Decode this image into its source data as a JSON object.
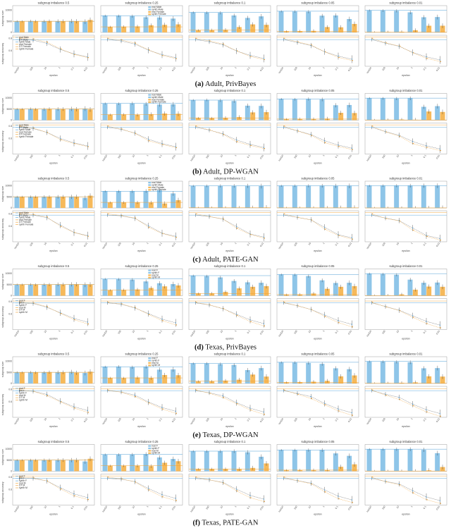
{
  "figure": {
    "subgroup_titles": [
      "subgroup imbalance 0.5",
      "subgroup imbalance 0.25",
      "subgroup imbalance 0.1",
      "subgroup imbalance 0.05",
      "subgroup imbalance 0.01"
    ],
    "x_ticks": [
      "nonDP",
      "100",
      "10",
      "1",
      "0.1",
      "0.01"
    ],
    "x_label": "epsilon",
    "colors": {
      "majority": "#8ec5e8",
      "minority": "#f6b95a",
      "majority_line": "#4f9fd6",
      "minority_line": "#f0a030"
    }
  },
  "chart_data": [
    {
      "panel": "a",
      "caption_label": "(a)",
      "caption_text": "Adult, PrivBayes",
      "top": {
        "type": "bar",
        "ylabel": "subgroup size",
        "yticks": [
          "10000",
          "5000",
          "0"
        ],
        "ylim": [
          0,
          12000
        ],
        "legend": [
          "real Male",
          "synth Male",
          "real Female",
          "synth Female"
        ],
        "real_major": [
          5000,
          7500,
          9000,
          9500,
          9900
        ],
        "real_minor": [
          5000,
          2500,
          1000,
          500,
          100
        ],
        "major": [
          [
            5000,
            5100,
            5000,
            5050,
            5100,
            4800
          ],
          [
            7500,
            7400,
            7300,
            6800,
            6700,
            6200
          ],
          [
            9000,
            8900,
            8800,
            7600,
            6500,
            7200
          ],
          [
            9500,
            9400,
            9300,
            7500,
            7600,
            6000
          ],
          [
            9900,
            9800,
            9700,
            9000,
            6800,
            6900
          ]
        ],
        "minor": [
          [
            5000,
            5050,
            5100,
            5050,
            5000,
            5600
          ],
          [
            2500,
            2600,
            2700,
            3200,
            3400,
            3600
          ],
          [
            1000,
            1100,
            1200,
            2400,
            3600,
            3400
          ],
          [
            500,
            600,
            700,
            2400,
            2300,
            3800
          ],
          [
            100,
            200,
            300,
            1000,
            3000,
            3000
          ]
        ]
      },
      "bottom": {
        "type": "line",
        "ylabel": "subgroup accuracy",
        "yticks": [
          "0.8",
          "0.6"
        ],
        "legend": [
          "real Male",
          "DT Male",
          "synth Male",
          "real Female",
          "DT Female",
          "synth Female"
        ],
        "major": [
          0.78,
          0.77,
          0.72,
          0.62,
          0.55,
          0.5
        ],
        "minor": [
          0.8,
          0.79,
          0.74,
          0.63,
          0.54,
          0.49
        ]
      }
    },
    {
      "panel": "b",
      "caption_label": "(b)",
      "caption_text": "Adult, DP-WGAN",
      "top": {
        "type": "bar",
        "ylabel": "subgroup size",
        "yticks": [
          "10000",
          "5000",
          "0"
        ],
        "ylim": [
          0,
          12000
        ],
        "legend": [
          "real Male",
          "synth Male",
          "real Female",
          "synth Female"
        ],
        "real_major": [
          5000,
          7500,
          9000,
          9500,
          9900
        ],
        "real_minor": [
          5000,
          2500,
          1000,
          500,
          100
        ],
        "major": [
          [
            5000,
            5100,
            4900,
            5000,
            5100,
            5200
          ],
          [
            7500,
            7400,
            7600,
            7300,
            7000,
            7100
          ],
          [
            9000,
            9100,
            8900,
            8600,
            6500,
            6400
          ],
          [
            9500,
            9400,
            9500,
            9300,
            6700,
            6800
          ],
          [
            9900,
            9800,
            9700,
            9800,
            6000,
            6300
          ]
        ],
        "minor": [
          [
            5000,
            4950,
            5100,
            5000,
            4900,
            4800
          ],
          [
            2500,
            2600,
            2400,
            2700,
            3000,
            2900
          ],
          [
            1000,
            900,
            1100,
            1400,
            3500,
            3600
          ],
          [
            500,
            600,
            500,
            700,
            3300,
            3200
          ],
          [
            100,
            200,
            300,
            200,
            3900,
            3700
          ]
        ]
      },
      "bottom": {
        "type": "line",
        "ylabel": "subgroup accuracy",
        "yticks": [
          "0.8",
          "0.6"
        ],
        "legend": [
          "real Male",
          "DT Male",
          "synth Male",
          "real Female",
          "DT Female",
          "synth Female"
        ],
        "major": [
          0.78,
          0.76,
          0.7,
          0.6,
          0.53,
          0.48
        ],
        "minor": [
          0.8,
          0.77,
          0.7,
          0.58,
          0.52,
          0.47
        ]
      }
    },
    {
      "panel": "c",
      "caption_label": "(c)",
      "caption_text": "Adult, PATE-GAN",
      "top": {
        "type": "bar",
        "ylabel": "subgroup size",
        "yticks": [
          "10000",
          "5000",
          "0"
        ],
        "ylim": [
          0,
          12000
        ],
        "legend": [
          "real Male",
          "synth Male",
          "real Female",
          "synth Female"
        ],
        "real_major": [
          5000,
          7500,
          9900,
          9950,
          9990
        ],
        "real_minor": [
          5000,
          2500,
          100,
          50,
          10
        ],
        "major": [
          [
            5000,
            5000,
            5000,
            5000,
            5000,
            4500
          ],
          [
            7500,
            7500,
            7500,
            7600,
            8000,
            6500
          ],
          [
            9900,
            9900,
            9900,
            9900,
            9900,
            9800
          ],
          [
            9950,
            9950,
            9950,
            9950,
            9900,
            9900
          ],
          [
            9990,
            9990,
            9990,
            9990,
            9990,
            9950
          ]
        ],
        "minor": [
          [
            5000,
            5000,
            5000,
            5000,
            5000,
            5500
          ],
          [
            2500,
            2500,
            2500,
            2400,
            2000,
            3500
          ],
          [
            100,
            100,
            100,
            100,
            100,
            200
          ],
          [
            50,
            50,
            50,
            50,
            100,
            100
          ],
          [
            10,
            10,
            10,
            10,
            10,
            50
          ]
        ]
      },
      "bottom": {
        "type": "line",
        "ylabel": "subgroup accuracy",
        "yticks": [
          "0.8",
          "0.6"
        ],
        "legend": [
          "real Male",
          "DT Male",
          "synth Male",
          "real Female",
          "DT Female",
          "synth Female"
        ],
        "major": [
          0.78,
          0.78,
          0.74,
          0.62,
          0.5,
          0.45
        ],
        "minor": [
          0.8,
          0.79,
          0.75,
          0.6,
          0.5,
          0.44
        ]
      }
    },
    {
      "panel": "d",
      "caption_label": "(d)",
      "caption_text": "Texas, PrivBayes",
      "top": {
        "type": "bar",
        "ylabel": "subgroup size",
        "yticks": [
          "10000",
          "5000",
          "0"
        ],
        "ylim": [
          0,
          12000
        ],
        "legend": [
          "real F",
          "synth F",
          "real M",
          "synth M"
        ],
        "real_major": [
          5000,
          7500,
          9000,
          9500,
          9900
        ],
        "real_minor": [
          5000,
          2500,
          1000,
          500,
          100
        ],
        "major": [
          [
            5000,
            5050,
            5000,
            5100,
            5100,
            4900
          ],
          [
            7500,
            7400,
            7200,
            6400,
            5600,
            5200
          ],
          [
            9000,
            8800,
            8200,
            6600,
            6000,
            5800
          ],
          [
            9500,
            9400,
            8800,
            6900,
            5700,
            5800
          ],
          [
            9900,
            9700,
            9400,
            7200,
            5800,
            5900
          ]
        ],
        "minor": [
          [
            5000,
            4950,
            5000,
            5050,
            5150,
            5000
          ],
          [
            2500,
            2600,
            2800,
            3500,
            4200,
            4600
          ],
          [
            1000,
            1100,
            1700,
            3300,
            4000,
            4300
          ],
          [
            500,
            600,
            1000,
            3100,
            4000,
            4300
          ],
          [
            100,
            200,
            600,
            2700,
            4100,
            4000
          ]
        ]
      },
      "bottom": {
        "type": "line",
        "ylabel": "subgroup accuracy",
        "yticks": [
          "0.8",
          "0.6"
        ],
        "legend": [
          "real F",
          "DT F",
          "synth F",
          "real M",
          "DT M",
          "synth M"
        ],
        "major": [
          0.78,
          0.77,
          0.71,
          0.62,
          0.53,
          0.47
        ],
        "minor": [
          0.79,
          0.78,
          0.72,
          0.61,
          0.51,
          0.44
        ]
      }
    },
    {
      "panel": "e",
      "caption_label": "(e)",
      "caption_text": "Texas, DP-WGAN",
      "top": {
        "type": "bar",
        "ylabel": "subgroup size",
        "yticks": [
          "10000",
          "5000",
          "0"
        ],
        "ylim": [
          0,
          12000
        ],
        "legend": [
          "real F",
          "synth F",
          "real M",
          "synth M"
        ],
        "real_major": [
          5000,
          7500,
          9000,
          9500,
          9900
        ],
        "real_minor": [
          5000,
          2500,
          1000,
          500,
          100
        ],
        "major": [
          [
            5000,
            5050,
            4900,
            5000,
            5200,
            4700
          ],
          [
            7500,
            7600,
            7300,
            7500,
            6200,
            6300
          ],
          [
            9000,
            9000,
            8700,
            8300,
            6000,
            6900
          ],
          [
            9500,
            9400,
            9200,
            8800,
            6800,
            6400
          ],
          [
            9900,
            9800,
            9700,
            9500,
            6800,
            6900
          ]
        ],
        "minor": [
          [
            5000,
            4950,
            5100,
            5000,
            4800,
            5300
          ],
          [
            2500,
            2400,
            2700,
            2500,
            3800,
            3700
          ],
          [
            1000,
            1000,
            1300,
            1700,
            4000,
            3100
          ],
          [
            500,
            600,
            800,
            1200,
            3200,
            3600
          ],
          [
            100,
            200,
            300,
            500,
            3200,
            3100
          ]
        ]
      },
      "bottom": {
        "type": "line",
        "ylabel": "subgroup accuracy",
        "yticks": [
          "0.8",
          "0.6"
        ],
        "legend": [
          "real F",
          "DT F",
          "synth F",
          "real M",
          "DT M",
          "synth M"
        ],
        "major": [
          0.78,
          0.77,
          0.72,
          0.61,
          0.52,
          0.46
        ],
        "minor": [
          0.79,
          0.77,
          0.7,
          0.6,
          0.5,
          0.43
        ]
      }
    },
    {
      "panel": "f",
      "caption_label": "(f)",
      "caption_text": "Texas, PATE-GAN",
      "top": {
        "type": "bar",
        "ylabel": "subgroup size",
        "yticks": [
          "10000",
          "5000",
          "0"
        ],
        "ylim": [
          0,
          12000
        ],
        "legend": [
          "real F",
          "synth F",
          "real M",
          "synth M"
        ],
        "real_major": [
          5000,
          7500,
          9000,
          9500,
          9900
        ],
        "real_minor": [
          5000,
          2500,
          1000,
          500,
          100
        ],
        "major": [
          [
            5000,
            5000,
            5000,
            5000,
            5000,
            4400
          ],
          [
            7500,
            7500,
            7500,
            7700,
            6200,
            5500
          ],
          [
            9000,
            9000,
            9000,
            9000,
            8500,
            6500
          ],
          [
            9500,
            9500,
            9500,
            9500,
            8000,
            6900
          ],
          [
            9900,
            9900,
            9900,
            9900,
            9600,
            8100
          ]
        ],
        "minor": [
          [
            5000,
            5000,
            5000,
            5000,
            5000,
            5600
          ],
          [
            2500,
            2500,
            2500,
            2300,
            3800,
            4500
          ],
          [
            1000,
            1000,
            1000,
            1000,
            1500,
            3500
          ],
          [
            500,
            500,
            500,
            500,
            2000,
            3100
          ],
          [
            100,
            100,
            100,
            100,
            400,
            1900
          ]
        ]
      },
      "bottom": {
        "type": "line",
        "ylabel": "subgroup accuracy",
        "yticks": [
          "0.8",
          "0.6"
        ],
        "legend": [
          "real F",
          "DT F",
          "synth F",
          "real M",
          "DT M",
          "synth M"
        ],
        "major": [
          0.78,
          0.78,
          0.74,
          0.63,
          0.53,
          0.47
        ],
        "minor": [
          0.8,
          0.79,
          0.74,
          0.61,
          0.5,
          0.44
        ]
      }
    }
  ]
}
